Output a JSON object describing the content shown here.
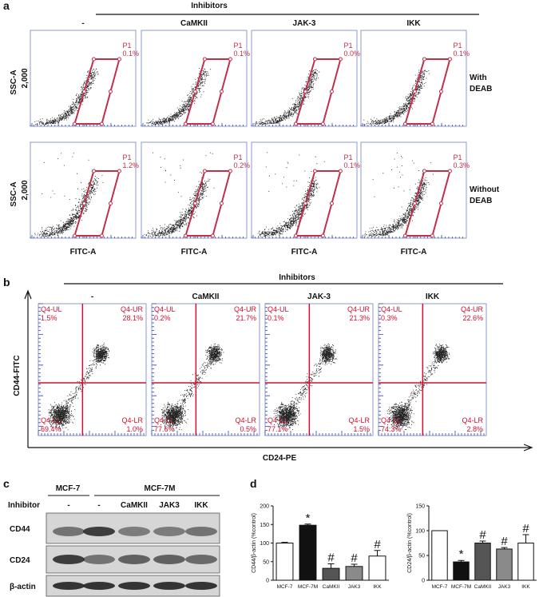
{
  "panel_a": {
    "label": "a",
    "group_label": "Inhibitors",
    "columns": [
      "-",
      "CaMKII",
      "JAK-3",
      "IKK"
    ],
    "y_axis_label": "SSC-A",
    "y_tick": "2,000",
    "x_axis_label": "FITC-A",
    "gate_name": "P1",
    "rows": [
      {
        "label_lines": [
          "With",
          "DEAB"
        ],
        "percents": [
          "0.1%",
          "0.1%",
          "0.0%",
          "0.1%"
        ]
      },
      {
        "label_lines": [
          "Without",
          "DEAB"
        ],
        "percents": [
          "1.2%",
          "0.2%",
          "0.1%",
          "0.3%"
        ]
      }
    ]
  },
  "panel_b": {
    "label": "b",
    "group_label": "Inhibitors",
    "columns": [
      "-",
      "CaMKII",
      "JAK-3",
      "IKK"
    ],
    "y_axis_label": "CD44-FITC",
    "x_axis_label": "CD24-PE",
    "quadrant_names": {
      "UL": "Q4-UL",
      "UR": "Q4-UR",
      "LL": "Q4-LL",
      "LR": "Q4-LR"
    },
    "plots": [
      {
        "UL": "1.5%",
        "UR": "28.1%",
        "LL": "69.4%",
        "LR": "1.0%"
      },
      {
        "UL": "0.2%",
        "UR": "21.7%",
        "LL": "77.6%",
        "LR": "0.5%"
      },
      {
        "UL": "0.1%",
        "UR": "21.3%",
        "LL": "77.1%",
        "LR": "1.5%"
      },
      {
        "UL": "0.3%",
        "UR": "22.6%",
        "LL": "74.3%",
        "LR": "2.8%"
      }
    ]
  },
  "panel_c": {
    "label": "c",
    "groups": [
      "MCF-7",
      "MCF-7M"
    ],
    "row_label": "Inhibitor",
    "lanes": [
      "-",
      "-",
      "CaMKII",
      "JAK3",
      "IKK"
    ],
    "bands": [
      "CD44",
      "CD24",
      "β-actin"
    ]
  },
  "panel_d": {
    "label": "d",
    "charts": [
      {
        "type": "bar",
        "y_axis_label": "CD44/β-actin (%control)",
        "categories": [
          "MCF-7",
          "MCF-7M",
          "CaMKII",
          "JAK3",
          "IKK"
        ],
        "values": [
          100,
          148,
          32,
          37,
          65
        ],
        "errors": [
          2,
          3,
          12,
          6,
          15
        ],
        "colors": [
          "#ffffff",
          "#111111",
          "#555555",
          "#8a8a8a",
          "#ffffff"
        ],
        "ylim": [
          0,
          200
        ],
        "yticks": [
          0,
          50,
          100,
          150,
          200
        ],
        "annotations": [
          {
            "index": 1,
            "text": "*"
          },
          {
            "index": 2,
            "text": "#"
          },
          {
            "index": 3,
            "text": "#"
          },
          {
            "index": 4,
            "text": "#"
          }
        ]
      },
      {
        "type": "bar",
        "y_axis_label": "CD24/β-actin (%control)",
        "categories": [
          "MCF-7",
          "MCF-7M",
          "CaMKII",
          "JAK3",
          "IKK"
        ],
        "values": [
          100,
          37,
          75,
          63,
          75
        ],
        "errors": [
          0,
          3,
          4,
          3,
          17
        ],
        "colors": [
          "#ffffff",
          "#111111",
          "#555555",
          "#8a8a8a",
          "#ffffff"
        ],
        "ylim": [
          0,
          150
        ],
        "yticks": [
          0,
          50,
          100,
          150
        ],
        "annotations": [
          {
            "index": 1,
            "text": "*"
          },
          {
            "index": 2,
            "text": "#"
          },
          {
            "index": 3,
            "text": "#"
          },
          {
            "index": 4,
            "text": "#"
          }
        ]
      }
    ]
  }
}
